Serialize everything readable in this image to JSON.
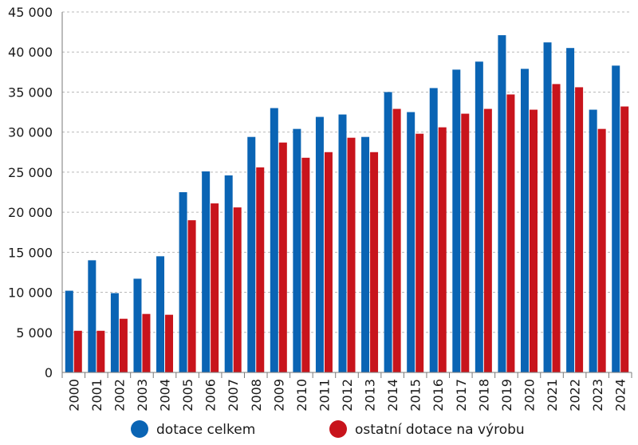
{
  "chart_data": {
    "type": "bar",
    "title": "",
    "xlabel": "",
    "ylabel": "",
    "ylim": [
      0,
      45000
    ],
    "yticks": [
      0,
      5000,
      10000,
      15000,
      20000,
      25000,
      30000,
      35000,
      40000,
      45000
    ],
    "ytick_labels": [
      "0",
      "5 000",
      "10 000",
      "15 000",
      "20 000",
      "25 000",
      "30 000",
      "35 000",
      "40 000",
      "45 000"
    ],
    "grid": true,
    "legend_position": "bottom",
    "categories": [
      "2000",
      "2001",
      "2002",
      "2003",
      "2004",
      "2005",
      "2006",
      "2007",
      "2008",
      "2009",
      "2010",
      "2011",
      "2012",
      "2013",
      "2014",
      "2015",
      "2016",
      "2017",
      "2018",
      "2019",
      "2020",
      "2021",
      "2022",
      "2023",
      "2024"
    ],
    "series": [
      {
        "name": "dotace celkem",
        "color": "#0a64b4",
        "values": [
          10200,
          14000,
          9900,
          11700,
          14500,
          22500,
          25100,
          24600,
          29400,
          33000,
          30400,
          31900,
          32200,
          29400,
          35000,
          32500,
          35500,
          37800,
          38800,
          42100,
          37900,
          41200,
          40500,
          32800,
          38300
        ]
      },
      {
        "name": "ostatní dotace na výrobu",
        "color": "#c8141c",
        "values": [
          5200,
          5200,
          6700,
          7300,
          7200,
          19000,
          21100,
          20600,
          25600,
          28700,
          26800,
          27500,
          29300,
          27500,
          32900,
          29800,
          30600,
          32300,
          32900,
          34700,
          32800,
          36000,
          35600,
          30400,
          33200
        ]
      }
    ]
  }
}
